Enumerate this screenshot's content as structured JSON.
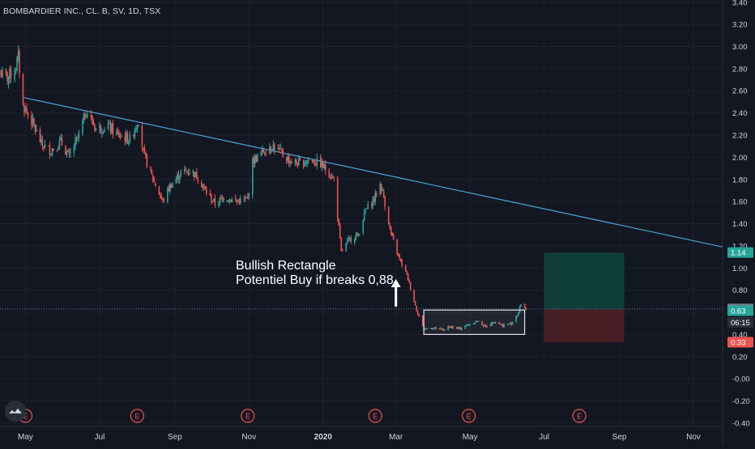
{
  "chart_data": {
    "type": "candlestick",
    "title": "BOMBARDIER INC., CL. B, SV, 1D, TSX",
    "colors": {
      "background": "#131722",
      "up": "#26a69a",
      "down": "#ef5350",
      "trendline": "#4aa8d8",
      "grid": "#1e222d",
      "axis_text": "#d1d4dc",
      "target_zone": "#0f3f3a",
      "stop_zone": "#4a1f24"
    },
    "x_axis": {
      "tick_labels": [
        "May",
        "Jul",
        "Sep",
        "Nov",
        "2020",
        "Mar",
        "May",
        "Jul",
        "Sep",
        "Nov"
      ],
      "tick_dates": [
        "2019-05-01",
        "2019-07-01",
        "2019-09-01",
        "2019-11-01",
        "2020-01-01",
        "2020-03-01",
        "2020-05-01",
        "2020-07-01",
        "2020-09-01",
        "2020-11-01"
      ],
      "range": [
        "2019-04-10",
        "2020-11-25"
      ]
    },
    "y_axis": {
      "tick_labels": [
        "3.40",
        "3.20",
        "3.00",
        "2.80",
        "2.60",
        "2.40",
        "2.20",
        "2.00",
        "1.80",
        "1.60",
        "1.40",
        "1.20",
        "1.00",
        "0.80",
        "0.60",
        "0.40",
        "0.20",
        "-0.00",
        "-0.20",
        "-0.40"
      ],
      "range": [
        -0.43,
        3.42
      ],
      "position": "right"
    },
    "price_path": [
      [
        "2019-04-10",
        2.76
      ],
      [
        "2019-04-16",
        2.72
      ],
      [
        "2019-04-22",
        2.78
      ],
      [
        "2019-04-25",
        2.9
      ],
      [
        "2019-04-29",
        2.47
      ],
      [
        "2019-05-06",
        2.33
      ],
      [
        "2019-05-14",
        2.12
      ],
      [
        "2019-05-22",
        2.06
      ],
      [
        "2019-05-30",
        2.14
      ],
      [
        "2019-06-06",
        2.0
      ],
      [
        "2019-06-14",
        2.2
      ],
      [
        "2019-06-20",
        2.42
      ],
      [
        "2019-06-28",
        2.26
      ],
      [
        "2019-07-08",
        2.28
      ],
      [
        "2019-07-16",
        2.2
      ],
      [
        "2019-07-26",
        2.16
      ],
      [
        "2019-08-02",
        2.34
      ],
      [
        "2019-08-06",
        2.04
      ],
      [
        "2019-08-14",
        1.8
      ],
      [
        "2019-08-22",
        1.6
      ],
      [
        "2019-08-28",
        1.74
      ],
      [
        "2019-09-06",
        1.86
      ],
      [
        "2019-09-14",
        1.88
      ],
      [
        "2019-09-20",
        1.82
      ],
      [
        "2019-09-26",
        1.7
      ],
      [
        "2019-10-04",
        1.58
      ],
      [
        "2019-10-12",
        1.64
      ],
      [
        "2019-10-22",
        1.6
      ],
      [
        "2019-10-31",
        1.62
      ],
      [
        "2019-11-04",
        1.96
      ],
      [
        "2019-11-12",
        2.05
      ],
      [
        "2019-11-20",
        2.11
      ],
      [
        "2019-11-28",
        2.03
      ],
      [
        "2019-12-06",
        1.96
      ],
      [
        "2019-12-14",
        1.94
      ],
      [
        "2019-12-20",
        1.98
      ],
      [
        "2019-12-30",
        1.94
      ],
      [
        "2020-01-06",
        1.86
      ],
      [
        "2020-01-10",
        1.8
      ],
      [
        "2020-01-16",
        1.14
      ],
      [
        "2020-01-22",
        1.25
      ],
      [
        "2020-01-30",
        1.3
      ],
      [
        "2020-02-05",
        1.52
      ],
      [
        "2020-02-12",
        1.62
      ],
      [
        "2020-02-17",
        1.76
      ],
      [
        "2020-02-20",
        1.64
      ],
      [
        "2020-02-26",
        1.3
      ],
      [
        "2020-03-04",
        1.08
      ],
      [
        "2020-03-10",
        0.94
      ],
      [
        "2020-03-14",
        0.78
      ],
      [
        "2020-03-18",
        0.62
      ],
      [
        "2020-03-24",
        0.45
      ],
      [
        "2020-03-31",
        0.46
      ],
      [
        "2020-04-08",
        0.44
      ],
      [
        "2020-04-15",
        0.47
      ],
      [
        "2020-04-22",
        0.45
      ],
      [
        "2020-04-30",
        0.49
      ],
      [
        "2020-05-07",
        0.52
      ],
      [
        "2020-05-14",
        0.47
      ],
      [
        "2020-05-21",
        0.52
      ],
      [
        "2020-05-28",
        0.48
      ],
      [
        "2020-06-04",
        0.5
      ],
      [
        "2020-06-10",
        0.6
      ],
      [
        "2020-06-12",
        0.68
      ],
      [
        "2020-06-16",
        0.63
      ]
    ],
    "trendline": {
      "from": [
        "2019-04-29",
        2.54
      ],
      "to": [
        "2020-11-25",
        1.19
      ]
    },
    "rectangle": {
      "from": "2020-03-24",
      "to": "2020-06-15",
      "top": 0.62,
      "bottom": 0.4
    },
    "position_box": {
      "from": "2020-07-01",
      "to": "2020-09-05",
      "target": 1.14,
      "entry": 0.63,
      "stop": 0.33
    },
    "current_price_line": 0.63,
    "price_badges": [
      {
        "label": "1.14",
        "value": 1.14,
        "color": "#26a69a"
      },
      {
        "label": "0.63",
        "value": 0.63,
        "color": "#787b86"
      },
      {
        "label": "0.63",
        "value": 0.615,
        "color": "#26a69a",
        "text_color": "#ffffff"
      },
      {
        "label": "06:15",
        "value": 0.51,
        "color": "#2a2e39"
      },
      {
        "label": "0.33",
        "value": 0.33,
        "color": "#ef5350"
      }
    ],
    "annotation": {
      "line1": "Bullish Rectangle",
      "line2": "Potentiel Buy if breaks 0,88",
      "arrow_at": [
        "2020-03-01",
        0.68
      ]
    },
    "earnings_markers": {
      "label": "E",
      "dates": [
        "2019-05-01",
        "2019-08-01",
        "2019-10-31",
        "2020-02-13",
        "2020-04-30",
        "2020-07-30"
      ]
    },
    "grid": true,
    "legend": "none"
  }
}
